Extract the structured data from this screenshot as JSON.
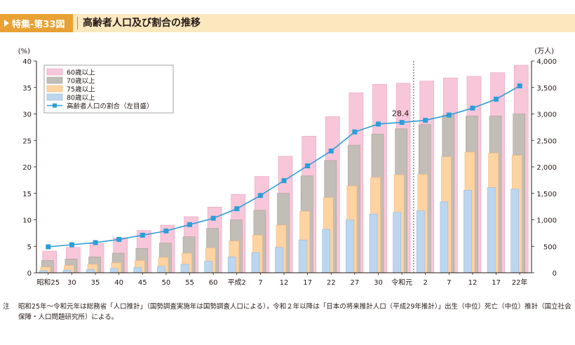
{
  "header": {
    "badge": "特集-第33図",
    "title": "高齢者人口及び割合の推移"
  },
  "colors": {
    "band": "#fbe8bf",
    "badge": "#e8a132",
    "s60": "#f8c6d9",
    "s70": "#c2bdb6",
    "s75": "#fdd3a2",
    "s80": "#bcd6ef",
    "line": "#2b9ed8"
  },
  "chart_data": {
    "type": "bar",
    "title": "高齢者人口及び割合の推移",
    "left_axis_unit": "(%)",
    "right_axis_unit": "(万人)",
    "left_ylim": [
      0,
      40
    ],
    "right_ylim": [
      0,
      4000
    ],
    "left_ticks": [
      "40",
      "35",
      "30",
      "25",
      "20",
      "15",
      "10",
      "5",
      "0"
    ],
    "right_ticks": [
      "4,000",
      "3,500",
      "3,000",
      "2,500",
      "2,000",
      "1,500",
      "1,000",
      "500",
      "0"
    ],
    "categories": [
      "昭和25",
      "30",
      "35",
      "40",
      "45",
      "50",
      "55",
      "60",
      "平成2",
      "7",
      "12",
      "17",
      "22",
      "27",
      "30",
      "令和元",
      "2",
      "7",
      "12",
      "17",
      "22年"
    ],
    "series": [
      {
        "name": "60歳以上",
        "unit": "万人",
        "values": [
          410,
          480,
          550,
          660,
          800,
          900,
          1060,
          1240,
          1480,
          1820,
          2200,
          2580,
          2950,
          3400,
          3560,
          3580,
          3620,
          3680,
          3710,
          3780,
          3920
        ]
      },
      {
        "name": "70歳以上",
        "unit": "万人",
        "values": [
          230,
          260,
          300,
          370,
          460,
          560,
          680,
          840,
          1000,
          1180,
          1500,
          1830,
          2120,
          2410,
          2620,
          2720,
          2800,
          2980,
          2960,
          2960,
          3000
        ]
      },
      {
        "name": "75歳以上",
        "unit": "万人",
        "values": [
          110,
          140,
          160,
          190,
          230,
          290,
          370,
          470,
          600,
          710,
          900,
          1160,
          1420,
          1640,
          1800,
          1850,
          1860,
          2190,
          2280,
          2260,
          2220
        ]
      },
      {
        "name": "80歳以上",
        "unit": "万人",
        "values": [
          40,
          50,
          60,
          80,
          100,
          120,
          160,
          220,
          300,
          380,
          480,
          620,
          820,
          1000,
          1110,
          1140,
          1170,
          1340,
          1560,
          1610,
          1580
        ]
      },
      {
        "name": "高齢者人口の割合（左目盛）",
        "unit": "%",
        "values": [
          4.9,
          5.3,
          5.7,
          6.3,
          7.1,
          7.9,
          9.1,
          10.3,
          12.1,
          14.6,
          17.4,
          20.2,
          23.0,
          26.6,
          28.1,
          28.4,
          28.8,
          29.8,
          31.1,
          32.8,
          35.3
        ]
      }
    ],
    "annotation": {
      "label": "28.4",
      "category": "令和元"
    },
    "divider_after_category": "令和元",
    "legend_position": "top-left"
  },
  "note": {
    "label": "注",
    "text": "昭和25年～令和元年は総務省「人口推計」（国勢調査実施年は国勢調査人口による），令和２年以降は「日本の将来推計人口（平成29年推計）」出生（中位）死亡（中位）推計（国立社会保障・人口問題研究所）による。"
  }
}
